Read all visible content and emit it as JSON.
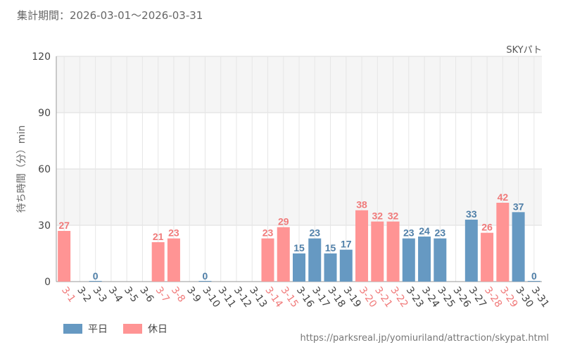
{
  "header": {
    "period": "集計期間：2026-03-01～2026-03-31"
  },
  "footer": {
    "source": "https://parksreal.jp/yomiuriland/attraction/skypat.html"
  },
  "colors": {
    "weekday": "#6699c2",
    "holiday": "#ff9494",
    "weekday_label": "#4f7fa8",
    "holiday_label": "#f07a7a"
  },
  "chart_data": {
    "type": "bar",
    "series_label": "SKYパト",
    "ylabel": "待ち時間（分）min",
    "ylim": [
      0,
      120
    ],
    "yticks": [
      0,
      30,
      60,
      90,
      120
    ],
    "grid": true,
    "legend_placement": "bottom-left",
    "legend": [
      {
        "name": "平日",
        "key": "weekday"
      },
      {
        "name": "休日",
        "key": "holiday"
      }
    ],
    "categories": [
      "3-1",
      "3-2",
      "3-3",
      "3-4",
      "3-5",
      "3-6",
      "3-7",
      "3-8",
      "3-9",
      "3-10",
      "3-11",
      "3-12",
      "3-13",
      "3-14",
      "3-15",
      "3-16",
      "3-17",
      "3-18",
      "3-19",
      "3-20",
      "3-21",
      "3-22",
      "3-23",
      "3-24",
      "3-25",
      "3-26",
      "3-27",
      "3-28",
      "3-29",
      "3-30",
      "3-31"
    ],
    "day_types": [
      "holiday",
      "weekday",
      "weekday",
      "weekday",
      "weekday",
      "weekday",
      "holiday",
      "holiday",
      "weekday",
      "weekday",
      "weekday",
      "weekday",
      "weekday",
      "holiday",
      "holiday",
      "weekday",
      "weekday",
      "weekday",
      "weekday",
      "holiday",
      "holiday",
      "holiday",
      "weekday",
      "weekday",
      "weekday",
      "weekday",
      "weekday",
      "holiday",
      "holiday",
      "weekday",
      "weekday"
    ],
    "values": [
      27,
      null,
      0,
      null,
      null,
      null,
      21,
      23,
      null,
      0,
      null,
      null,
      null,
      23,
      29,
      15,
      23,
      15,
      17,
      38,
      32,
      32,
      23,
      24,
      23,
      null,
      33,
      26,
      42,
      37,
      0
    ]
  }
}
